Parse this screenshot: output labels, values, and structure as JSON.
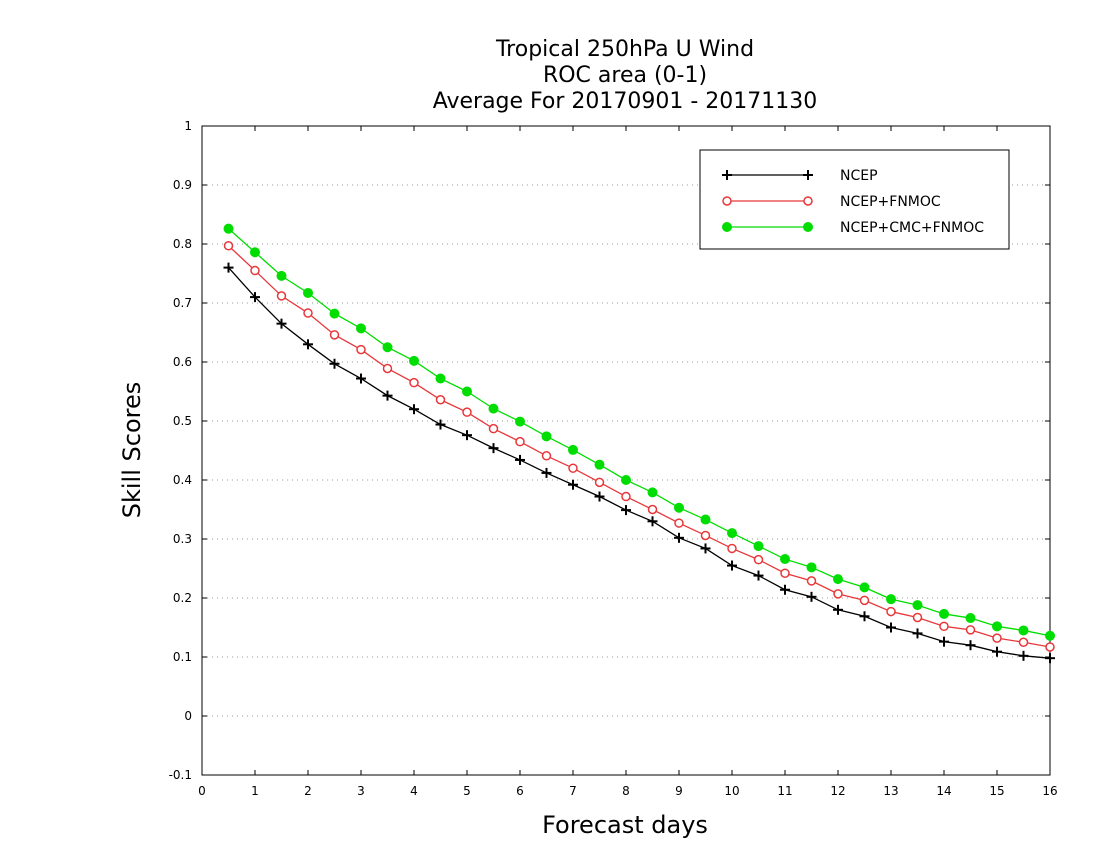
{
  "chart_data": {
    "type": "line",
    "title_lines": [
      "Tropical 250hPa U Wind",
      "ROC area (0-1)",
      "Average For 20170901 - 20171130"
    ],
    "xlabel": "Forecast days",
    "ylabel": "Skill Scores",
    "xlim": [
      0,
      16
    ],
    "ylim": [
      -0.1,
      1
    ],
    "x_ticks": [
      "0",
      "1",
      "2",
      "3",
      "4",
      "5",
      "6",
      "7",
      "8",
      "9",
      "10",
      "11",
      "12",
      "13",
      "14",
      "15",
      "16"
    ],
    "y_ticks": [
      "-0.1",
      "0",
      "0.1",
      "0.2",
      "0.3",
      "0.4",
      "0.5",
      "0.6",
      "0.7",
      "0.8",
      "0.9",
      "1"
    ],
    "grid": "horizontal dotted",
    "legend_position": "top-right",
    "x": [
      0.5,
      1,
      1.5,
      2,
      2.5,
      3,
      3.5,
      4,
      4.5,
      5,
      5.5,
      6,
      6.5,
      7,
      7.5,
      8,
      8.5,
      9,
      9.5,
      10,
      10.5,
      11,
      11.5,
      12,
      12.5,
      13,
      13.5,
      14,
      14.5,
      15,
      15.5,
      16
    ],
    "series": [
      {
        "name": "NCEP",
        "color": "#000000",
        "marker": "plus",
        "values": [
          0.76,
          0.71,
          0.665,
          0.63,
          0.597,
          0.572,
          0.543,
          0.52,
          0.494,
          0.476,
          0.454,
          0.434,
          0.412,
          0.392,
          0.372,
          0.349,
          0.33,
          0.302,
          0.284,
          0.255,
          0.238,
          0.214,
          0.202,
          0.18,
          0.169,
          0.15,
          0.14,
          0.126,
          0.12,
          0.109,
          0.102,
          0.098
        ]
      },
      {
        "name": "NCEP+FNMOC",
        "color": "#e8373a",
        "marker": "open-circle",
        "values": [
          0.797,
          0.755,
          0.712,
          0.683,
          0.646,
          0.621,
          0.589,
          0.565,
          0.536,
          0.515,
          0.487,
          0.465,
          0.441,
          0.42,
          0.396,
          0.372,
          0.35,
          0.327,
          0.306,
          0.284,
          0.265,
          0.242,
          0.229,
          0.207,
          0.196,
          0.177,
          0.167,
          0.152,
          0.146,
          0.132,
          0.125,
          0.117
        ]
      },
      {
        "name": "NCEP+CMC+FNMOC",
        "color": "#00dd00",
        "marker": "filled-circle",
        "values": [
          0.826,
          0.786,
          0.746,
          0.717,
          0.682,
          0.657,
          0.625,
          0.602,
          0.572,
          0.55,
          0.521,
          0.499,
          0.474,
          0.451,
          0.426,
          0.4,
          0.379,
          0.353,
          0.333,
          0.31,
          0.288,
          0.266,
          0.252,
          0.232,
          0.218,
          0.198,
          0.188,
          0.173,
          0.166,
          0.152,
          0.145,
          0.136
        ]
      }
    ]
  }
}
